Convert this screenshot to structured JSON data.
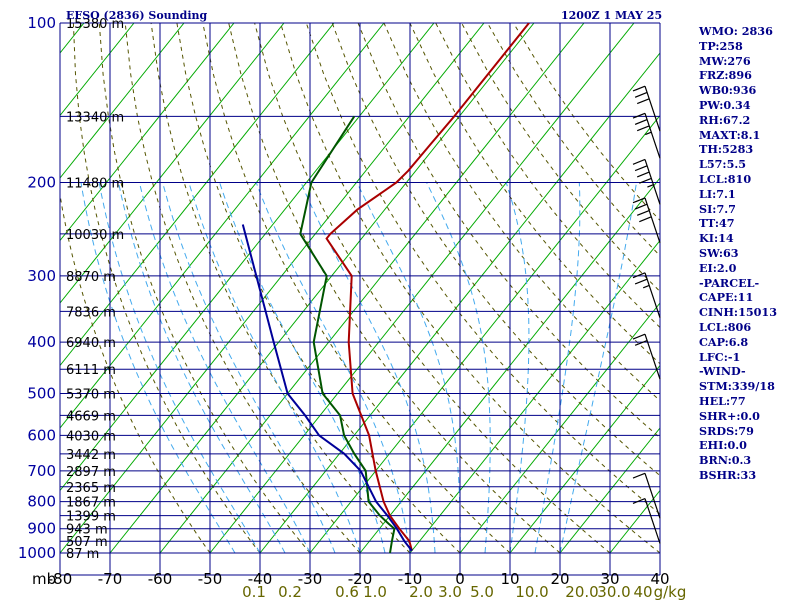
{
  "chart_data": {
    "type": "line",
    "title": "EFSO (2836) Sounding",
    "valid_time": "1200Z  1 MAY 25",
    "xlabel": "",
    "ylabel": "",
    "pressure_unit_label": "mb",
    "x_axis_temperature_c": [
      "-80",
      "-70",
      "-60",
      "-50",
      "-40",
      "-30",
      "-20",
      "-10",
      "0",
      "10",
      "20",
      "30",
      "40"
    ],
    "xlim": [
      -80,
      40
    ],
    "ylim": [
      1000,
      100
    ],
    "yscale": "log",
    "pressure_ticks": [
      {
        "p": 100,
        "label": "100"
      },
      {
        "p": 200,
        "label": "200"
      },
      {
        "p": 300,
        "label": "300"
      },
      {
        "p": 400,
        "label": "400"
      },
      {
        "p": 500,
        "label": "500"
      },
      {
        "p": 600,
        "label": "600"
      },
      {
        "p": 700,
        "label": "700"
      },
      {
        "p": 800,
        "label": "800"
      },
      {
        "p": 900,
        "label": "900"
      },
      {
        "p": 1000,
        "label": "1000"
      }
    ],
    "height_labels": [
      {
        "p": 100,
        "label": "15380 m"
      },
      {
        "p": 150,
        "label": "13340 m"
      },
      {
        "p": 200,
        "label": "11480 m"
      },
      {
        "p": 250,
        "label": "10030 m"
      },
      {
        "p": 300,
        "label": "8870 m"
      },
      {
        "p": 350,
        "label": "7836 m"
      },
      {
        "p": 400,
        "label": "6940 m"
      },
      {
        "p": 450,
        "label": "6111 m"
      },
      {
        "p": 500,
        "label": "5370 m"
      },
      {
        "p": 550,
        "label": "4669 m"
      },
      {
        "p": 600,
        "label": "4030 m"
      },
      {
        "p": 650,
        "label": "3442 m"
      },
      {
        "p": 700,
        "label": "2897 m"
      },
      {
        "p": 750,
        "label": "2365 m"
      },
      {
        "p": 800,
        "label": "1867 m"
      },
      {
        "p": 850,
        "label": "1399 m"
      },
      {
        "p": 900,
        "label": "943 m"
      },
      {
        "p": 950,
        "label": "507 m"
      },
      {
        "p": 1000,
        "label": "87 m"
      }
    ],
    "mixing_ratio_labels": [
      "0.1",
      "0.2",
      "0.6",
      "1.0",
      "2.0",
      "3.0",
      "5.0",
      "10.0",
      "20.0",
      "30.0",
      "40",
      "g/kg"
    ],
    "series": [
      {
        "key": "temperature",
        "color": "#aa0000",
        "points": [
          [
            100,
            -51
          ],
          [
            150,
            -51
          ],
          [
            170,
            -51.3
          ],
          [
            190,
            -51.5
          ],
          [
            200,
            -52
          ],
          [
            225,
            -55.5
          ],
          [
            250,
            -57
          ],
          [
            255,
            -57
          ],
          [
            300,
            -46
          ],
          [
            400,
            -36
          ],
          [
            500,
            -27
          ],
          [
            600,
            -17
          ],
          [
            700,
            -10
          ],
          [
            800,
            -3.5
          ],
          [
            850,
            0
          ],
          [
            900,
            4
          ],
          [
            950,
            8
          ],
          [
            990,
            10
          ]
        ]
      },
      {
        "key": "dewpoint",
        "color": "#005500",
        "points": [
          [
            150,
            -71
          ],
          [
            200,
            -69
          ],
          [
            250,
            -63
          ],
          [
            300,
            -51
          ],
          [
            400,
            -43
          ],
          [
            500,
            -33
          ],
          [
            550,
            -26
          ],
          [
            600,
            -22
          ],
          [
            650,
            -17
          ],
          [
            700,
            -12
          ],
          [
            800,
            -6.5
          ],
          [
            850,
            -2
          ],
          [
            880,
            1
          ],
          [
            900,
            3
          ],
          [
            950,
            4.5
          ],
          [
            1000,
            6
          ]
        ]
      },
      {
        "key": "parcel",
        "color": "#000099",
        "points": [
          [
            240,
            -76
          ],
          [
            400,
            -51
          ],
          [
            500,
            -40
          ],
          [
            550,
            -33
          ],
          [
            600,
            -27
          ],
          [
            650,
            -19
          ],
          [
            700,
            -13
          ],
          [
            800,
            -5
          ],
          [
            850,
            -0.5
          ],
          [
            900,
            3.5
          ],
          [
            950,
            7
          ],
          [
            990,
            10
          ]
        ]
      }
    ],
    "wind_barbs": [
      {
        "p": 160,
        "speed_kt": 30
      },
      {
        "p": 180,
        "speed_kt": 35
      },
      {
        "p": 220,
        "speed_kt": 45
      },
      {
        "p": 260,
        "speed_kt": 40
      },
      {
        "p": 360,
        "speed_kt": 25
      },
      {
        "p": 470,
        "speed_kt": 20
      },
      {
        "p": 860,
        "speed_kt": 10
      },
      {
        "p": 960,
        "speed_kt": 10
      }
    ],
    "indices": [
      {
        "label": "WMO: 2836"
      },
      {
        "label": "TP:258"
      },
      {
        "label": "MW:276"
      },
      {
        "label": "FRZ:896"
      },
      {
        "label": "WB0:936"
      },
      {
        "label": "PW:0.34"
      },
      {
        "label": "RH:67.2"
      },
      {
        "label": "MAXT:8.1"
      },
      {
        "label": "TH:5283"
      },
      {
        "label": "L57:5.5"
      },
      {
        "label": "LCL:810"
      },
      {
        "label": "LI:7.1"
      },
      {
        "label": "SI:7.7"
      },
      {
        "label": "TT:47"
      },
      {
        "label": "KI:14"
      },
      {
        "label": "SW:63"
      },
      {
        "label": "EI:2.0"
      },
      {
        "label": "-PARCEL-"
      },
      {
        "label": "CAPE:11"
      },
      {
        "label": "CINH:15013"
      },
      {
        "label": "LCL:806"
      },
      {
        "label": "CAP:6.8"
      },
      {
        "label": "LFC:-1"
      },
      {
        "label": "-WIND-"
      },
      {
        "label": "STM:339/18"
      },
      {
        "label": "HEL:77"
      },
      {
        "label": "SHR+:0.0"
      },
      {
        "label": "SRDS:79"
      },
      {
        "label": "EHI:0.0"
      },
      {
        "label": "BRN:0.3"
      },
      {
        "label": "BSHR:33"
      }
    ],
    "grid": true,
    "colors": {
      "grid": "#000088",
      "isotherm": "#00aa00",
      "dry_adiabat": "#555500",
      "moist_adiabat": "#44aaee",
      "barb": "#000000"
    }
  }
}
